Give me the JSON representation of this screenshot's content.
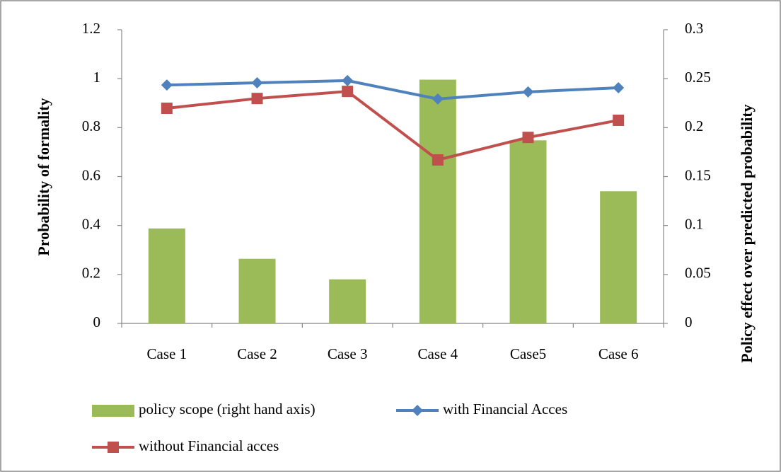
{
  "chart_data": {
    "type": "combo",
    "categories": [
      "Case 1",
      "Case 2",
      "Case 3",
      "Case 4",
      "Case5",
      "Case 6"
    ],
    "y_label": "Probability of formality",
    "y2_label": "Policy effect over predicted probability",
    "ylim": [
      0,
      1.2
    ],
    "yticks": [
      0,
      0.2,
      0.4,
      0.6,
      0.8,
      1,
      1.2
    ],
    "y2lim": [
      0,
      0.3
    ],
    "y2ticks": [
      0,
      0.05,
      0.1,
      0.15,
      0.2,
      0.25,
      0.3
    ],
    "series": [
      {
        "name": "policy scope (right hand axis)",
        "type": "bar",
        "axis": "y2",
        "color": "#9bbb59",
        "values": [
          0.097,
          0.066,
          0.045,
          0.249,
          0.187,
          0.135
        ]
      },
      {
        "name": "with Financial Acces",
        "type": "line",
        "marker": "diamond",
        "color": "#4f81bd",
        "values": [
          0.974,
          0.983,
          0.992,
          0.917,
          0.946,
          0.963
        ]
      },
      {
        "name": "without Financial acces",
        "type": "line",
        "marker": "square",
        "color": "#c0504d",
        "values": [
          0.879,
          0.919,
          0.948,
          0.668,
          0.76,
          0.83
        ]
      }
    ],
    "grid": false
  }
}
